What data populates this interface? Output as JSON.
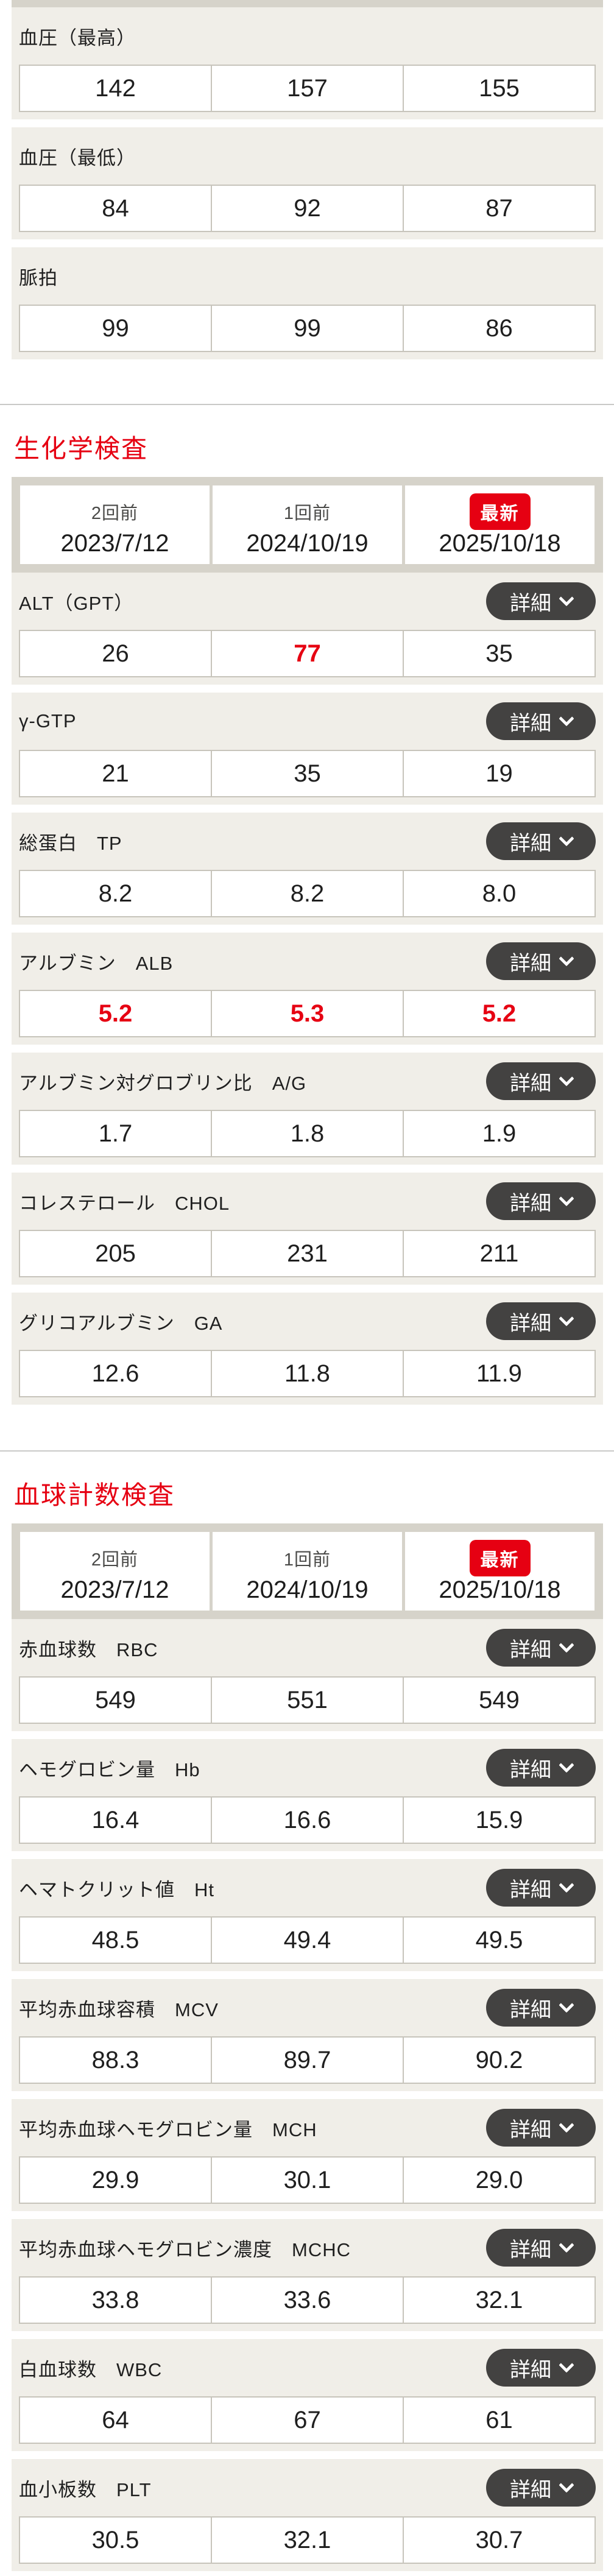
{
  "ui": {
    "detail_label": "詳細"
  },
  "colors": {
    "accent_red": "#e60012",
    "block_beige": "#f0eee8",
    "frame_tan": "#d6d3ca",
    "button_charcoal": "#434241",
    "cell_border": "#c7c4bb"
  },
  "vitals": {
    "items": [
      {
        "label": "血圧（最高）",
        "values": [
          "142",
          "157",
          "155"
        ],
        "alerts": [
          false,
          false,
          false
        ]
      },
      {
        "label": "血圧（最低）",
        "values": [
          "84",
          "92",
          "87"
        ],
        "alerts": [
          false,
          false,
          false
        ]
      },
      {
        "label": "脈拍",
        "values": [
          "99",
          "99",
          "86"
        ],
        "alerts": [
          false,
          false,
          false
        ]
      }
    ]
  },
  "sections": [
    {
      "title": "生化学検査",
      "header": {
        "prev2_label": "2回前",
        "prev2_date": "2023/7/12",
        "prev1_label": "1回前",
        "prev1_date": "2024/10/19",
        "latest_label": "最新",
        "latest_date": "2025/10/18"
      },
      "items": [
        {
          "label": "ALT（GPT）",
          "values": [
            "26",
            "77",
            "35"
          ],
          "alerts": [
            false,
            true,
            false
          ]
        },
        {
          "label": "γ-GTP",
          "values": [
            "21",
            "35",
            "19"
          ],
          "alerts": [
            false,
            false,
            false
          ]
        },
        {
          "label": "総蛋白　TP",
          "values": [
            "8.2",
            "8.2",
            "8.0"
          ],
          "alerts": [
            false,
            false,
            false
          ]
        },
        {
          "label": "アルブミン　ALB",
          "values": [
            "5.2",
            "5.3",
            "5.2"
          ],
          "alerts": [
            true,
            true,
            true
          ]
        },
        {
          "label": "アルブミン対グロブリン比　A/G",
          "values": [
            "1.7",
            "1.8",
            "1.9"
          ],
          "alerts": [
            false,
            false,
            false
          ]
        },
        {
          "label": "コレステロール　CHOL",
          "values": [
            "205",
            "231",
            "211"
          ],
          "alerts": [
            false,
            false,
            false
          ]
        },
        {
          "label": "グリコアルブミン　GA",
          "values": [
            "12.6",
            "11.8",
            "11.9"
          ],
          "alerts": [
            false,
            false,
            false
          ]
        }
      ]
    },
    {
      "title": "血球計数検査",
      "header": {
        "prev2_label": "2回前",
        "prev2_date": "2023/7/12",
        "prev1_label": "1回前",
        "prev1_date": "2024/10/19",
        "latest_label": "最新",
        "latest_date": "2025/10/18"
      },
      "items": [
        {
          "label": "赤血球数　RBC",
          "values": [
            "549",
            "551",
            "549"
          ],
          "alerts": [
            false,
            false,
            false
          ]
        },
        {
          "label": "ヘモグロビン量　Hb",
          "values": [
            "16.4",
            "16.6",
            "15.9"
          ],
          "alerts": [
            false,
            false,
            false
          ]
        },
        {
          "label": "ヘマトクリット値　Ht",
          "values": [
            "48.5",
            "49.4",
            "49.5"
          ],
          "alerts": [
            false,
            false,
            false
          ]
        },
        {
          "label": "平均赤血球容積　MCV",
          "values": [
            "88.3",
            "89.7",
            "90.2"
          ],
          "alerts": [
            false,
            false,
            false
          ]
        },
        {
          "label": "平均赤血球ヘモグロビン量　MCH",
          "values": [
            "29.9",
            "30.1",
            "29.0"
          ],
          "alerts": [
            false,
            false,
            false
          ]
        },
        {
          "label": "平均赤血球ヘモグロビン濃度　MCHC",
          "values": [
            "33.8",
            "33.6",
            "32.1"
          ],
          "alerts": [
            false,
            false,
            false
          ]
        },
        {
          "label": "白血球数　WBC",
          "values": [
            "64",
            "67",
            "61"
          ],
          "alerts": [
            false,
            false,
            false
          ]
        },
        {
          "label": "血小板数　PLT",
          "values": [
            "30.5",
            "32.1",
            "30.7"
          ],
          "alerts": [
            false,
            false,
            false
          ]
        }
      ]
    }
  ]
}
